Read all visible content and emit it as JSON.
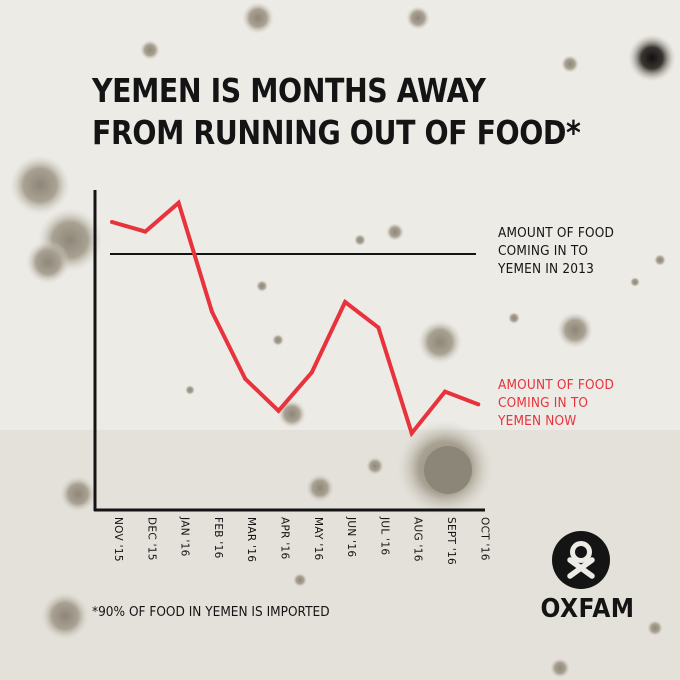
{
  "title": {
    "line1": "YEMEN IS MONTHS AWAY",
    "line2": "FROM RUNNING OUT OF FOOD*"
  },
  "chart_data": {
    "type": "line",
    "title": "YEMEN IS MONTHS AWAY FROM RUNNING OUT OF FOOD*",
    "categories": [
      "NOV '15",
      "DEC '15",
      "JAN '16",
      "FEB '16",
      "MAR '16",
      "APR '16",
      "MAY '16",
      "JUN '16",
      "JUL '16",
      "AUG '16",
      "SEPT '16",
      "OCT '16"
    ],
    "series": [
      {
        "name": "AMOUNT OF FOOD COMING IN TO YEMEN NOW",
        "color": "#e8323c",
        "values": [
          90,
          87,
          96,
          62,
          41,
          31,
          43,
          65,
          57,
          24,
          37,
          33
        ]
      }
    ],
    "reference_line": {
      "name": "AMOUNT OF FOOD COMING IN TO YEMEN IN 2013",
      "color": "#141414",
      "value": 80
    },
    "y_axis_labels_shown": false,
    "ylim": [
      0,
      100
    ],
    "grid": false
  },
  "labels": {
    "ref_line1": "AMOUNT OF FOOD",
    "ref_line2": "COMING IN TO",
    "ref_line3": "YEMEN IN 2013",
    "now_line1": "AMOUNT OF FOOD",
    "now_line2": "COMING IN TO",
    "now_line3": "YEMEN NOW"
  },
  "footnote": "*90% OF FOOD IN YEMEN IS IMPORTED",
  "logo": {
    "text": "OXFAM",
    "icon": "oxfam-logo-icon"
  }
}
